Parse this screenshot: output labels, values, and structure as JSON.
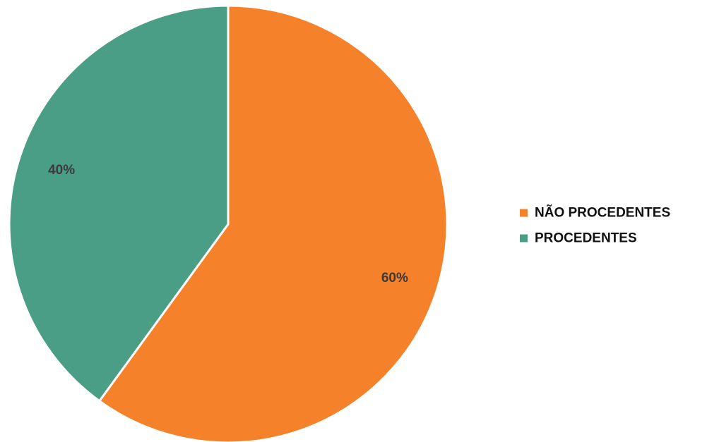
{
  "chart_data": {
    "type": "pie",
    "title": "",
    "start_angle_deg": 0,
    "direction": "clockwise",
    "legend_position": "right",
    "slices": [
      {
        "label": "NÃO PROCEDENTES",
        "value": 60,
        "display": "60%",
        "color": "#F5812A"
      },
      {
        "label": "PROCEDENTES",
        "value": 40,
        "display": "40%",
        "color": "#4A9E86"
      }
    ]
  }
}
